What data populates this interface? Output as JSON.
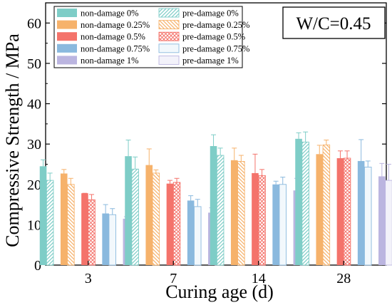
{
  "chart_data": {
    "type": "bar",
    "xlabel": "Curing age (d)",
    "ylabel": "Compressive Strength / MPa",
    "ylim": [
      0,
      65
    ],
    "yticks": [
      0,
      10,
      20,
      30,
      40,
      50,
      60
    ],
    "categories": [
      "3",
      "7",
      "14",
      "28"
    ],
    "annotation": "W/C=0.45",
    "legend_position": "top-left",
    "grid": false,
    "series": [
      {
        "name": "non-damage 0%",
        "group": "non-damage",
        "color": "#7ecdc7",
        "pattern": "solid",
        "values": [
          24.5,
          27.0,
          29.5,
          31.3
        ],
        "errors": [
          1.6,
          4.0,
          2.8,
          1.5
        ]
      },
      {
        "name": "pre-damage 0%",
        "group": "pre-damage",
        "color": "#7ecdc7",
        "pattern": "diagonal",
        "values": [
          21.0,
          23.8,
          27.2,
          30.5
        ],
        "errors": [
          1.8,
          3.0,
          1.8,
          2.5
        ]
      },
      {
        "name": "non-damage 0.25%",
        "group": "non-damage",
        "color": "#f6b26b",
        "pattern": "solid",
        "values": [
          22.7,
          24.8,
          26.0,
          27.5
        ],
        "errors": [
          1.0,
          4.0,
          3.0,
          2.2
        ]
      },
      {
        "name": "pre-damage 0.25%",
        "group": "pre-damage",
        "color": "#f6b26b",
        "pattern": "antidiagonal",
        "values": [
          20.0,
          22.8,
          25.7,
          29.8
        ],
        "errors": [
          1.5,
          0.8,
          1.5,
          1.2
        ]
      },
      {
        "name": "non-damage 0.5%",
        "group": "non-damage",
        "color": "#f4736b",
        "pattern": "solid",
        "values": [
          17.8,
          20.2,
          22.8,
          26.5
        ],
        "errors": [
          0.0,
          0.8,
          4.7,
          1.8
        ]
      },
      {
        "name": "pre-damage 0.5%",
        "group": "pre-damage",
        "color": "#f4736b",
        "pattern": "crosshatch",
        "values": [
          16.2,
          20.5,
          22.2,
          26.5
        ],
        "errors": [
          1.3,
          1.0,
          1.5,
          1.8
        ]
      },
      {
        "name": "non-damage 0.75%",
        "group": "non-damage",
        "color": "#8ab9de",
        "pattern": "solid",
        "values": [
          12.8,
          16.0,
          20.0,
          25.8
        ],
        "errors": [
          2.2,
          1.2,
          0.8,
          5.3
        ]
      },
      {
        "name": "pre-damage 0.75%",
        "group": "pre-damage",
        "color": "#8ab9de",
        "pattern": "light",
        "values": [
          12.5,
          14.5,
          20.0,
          24.3
        ],
        "errors": [
          1.5,
          1.8,
          1.8,
          1.5
        ]
      },
      {
        "name": "non-damage 1%",
        "group": "non-damage",
        "color": "#bbb5e0",
        "pattern": "solid",
        "values": [
          11.5,
          13.0,
          18.5,
          22.0
        ],
        "errors": [
          0.5,
          1.2,
          3.0,
          3.2
        ]
      },
      {
        "name": "pre-damage 1%",
        "group": "pre-damage",
        "color": "#bbb5e0",
        "pattern": "light",
        "values": [
          9.3,
          13.0,
          17.5,
          21.0
        ],
        "errors": [
          1.2,
          1.5,
          5.6,
          4.0
        ]
      }
    ]
  }
}
